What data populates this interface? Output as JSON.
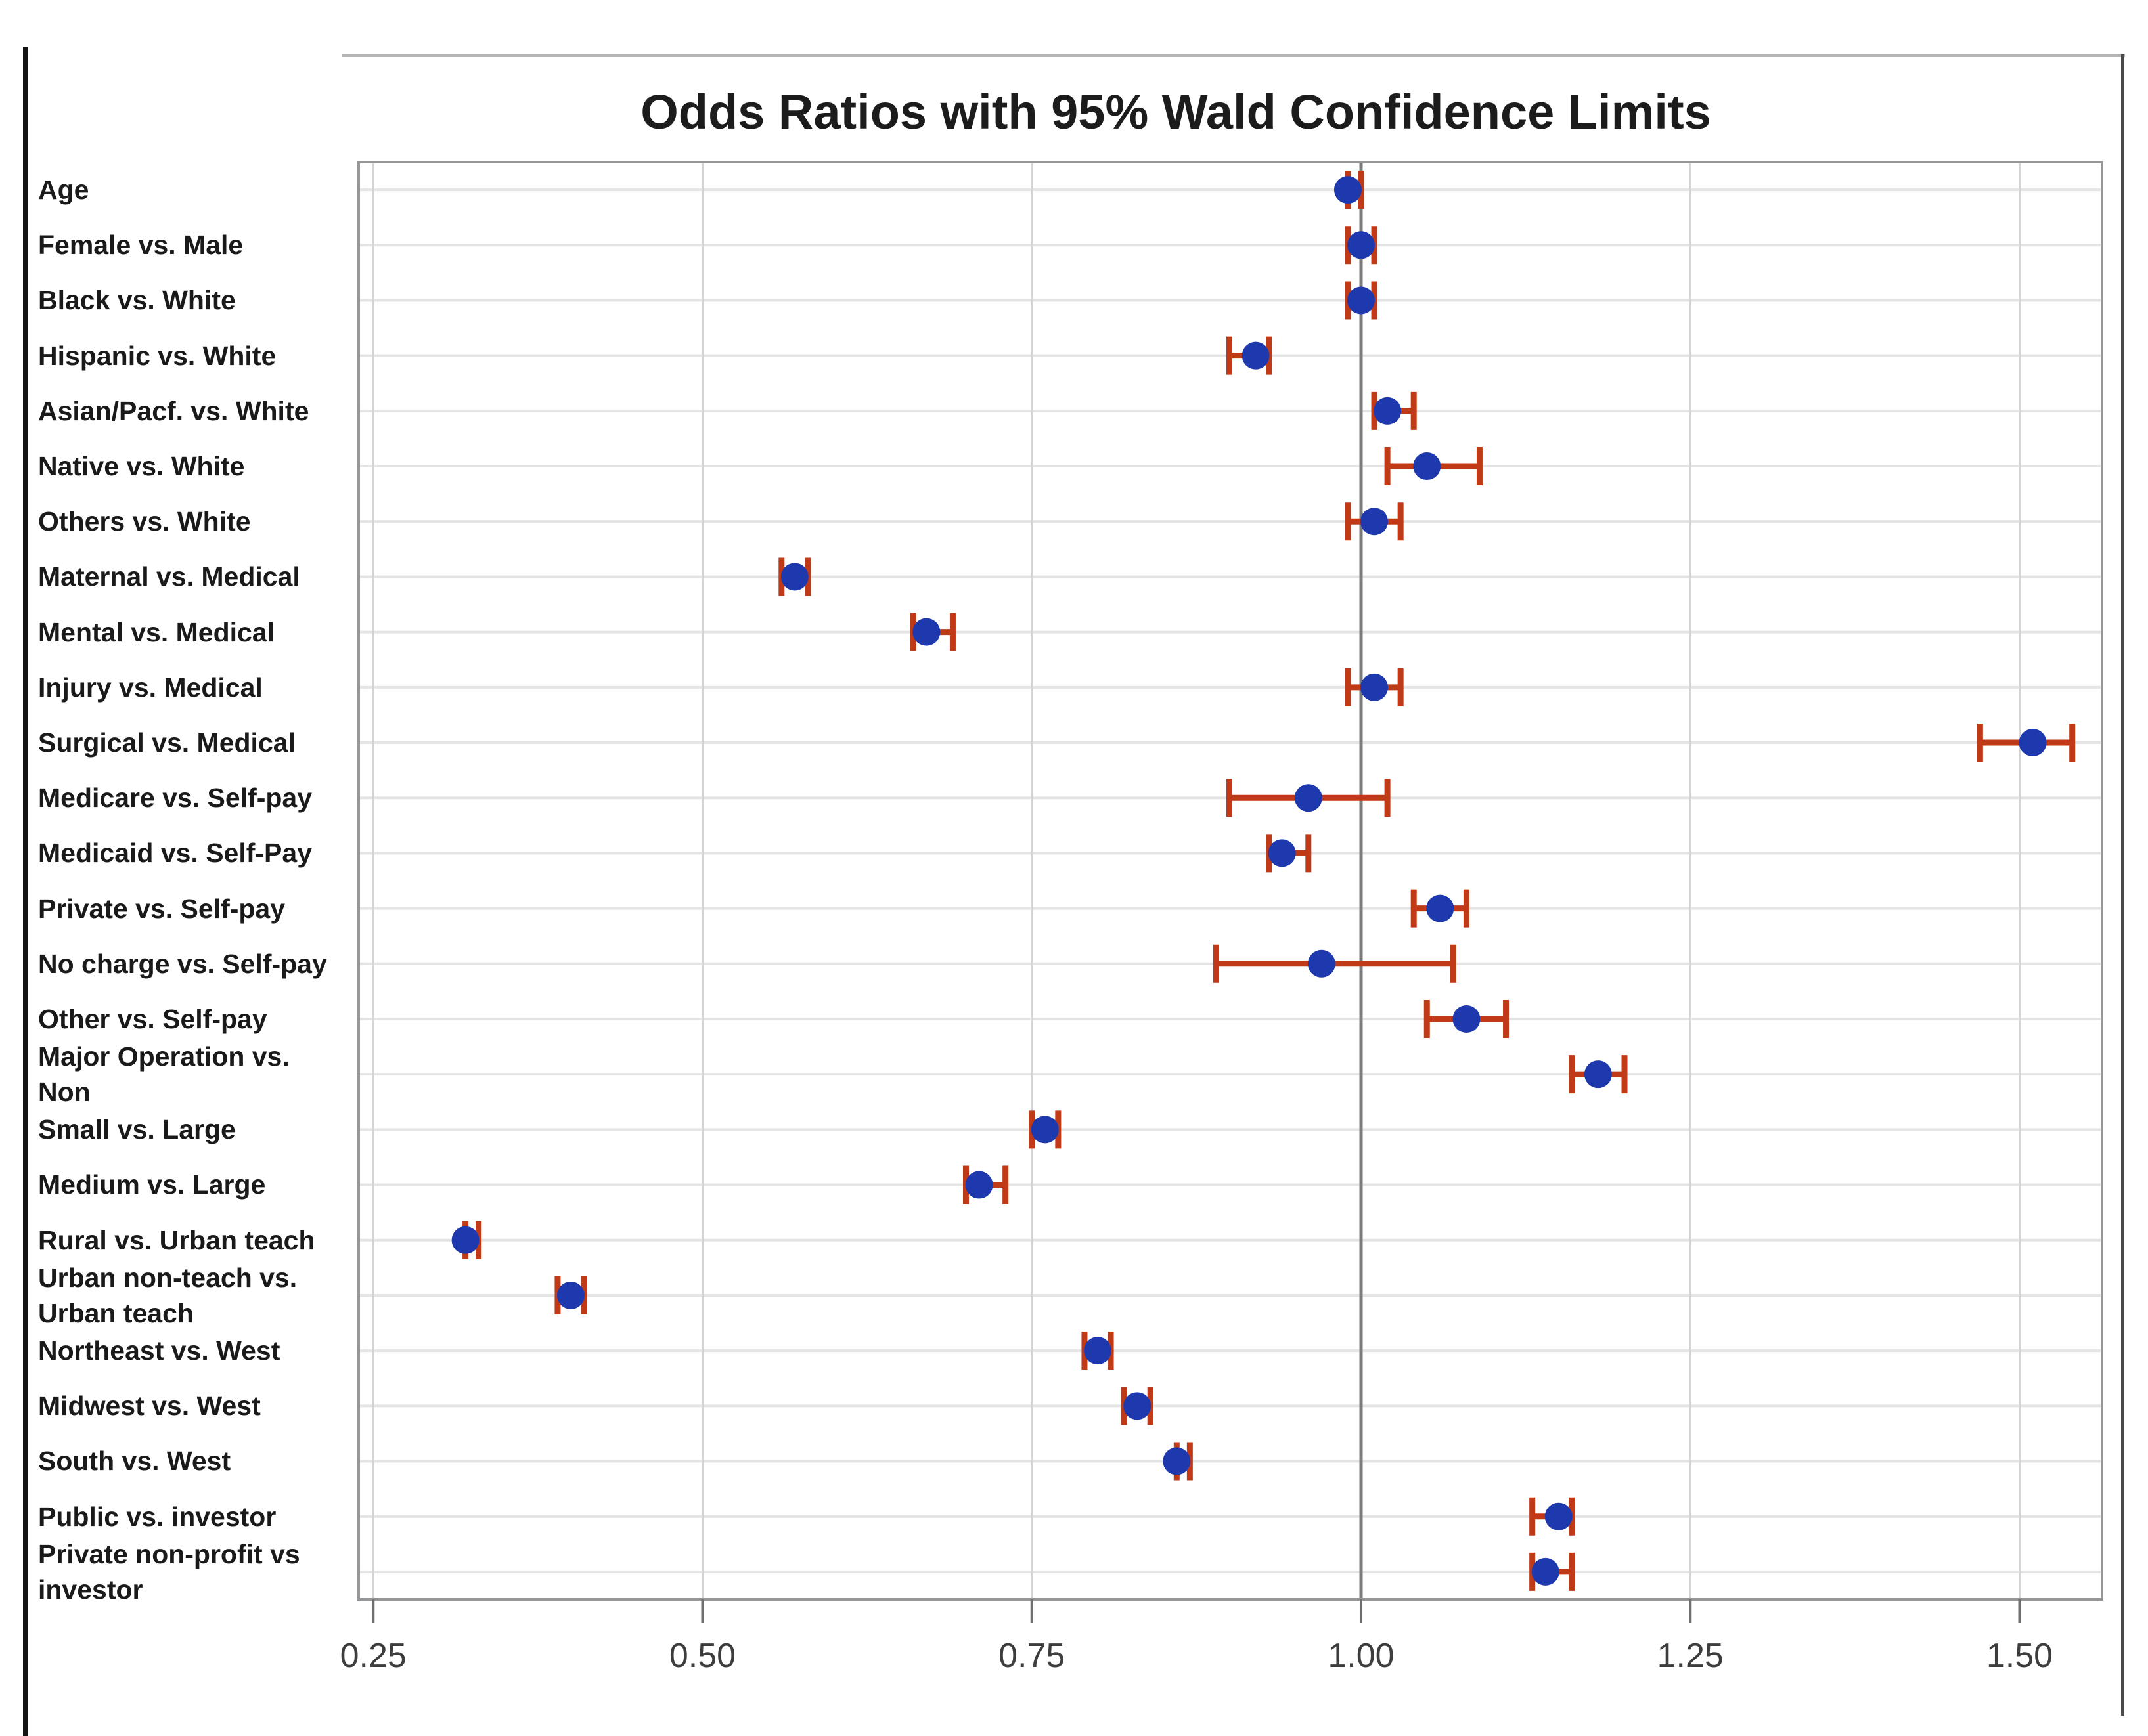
{
  "chart_data": {
    "type": "scatter",
    "subtype": "forest-plot",
    "title": "Odds Ratios with 95% Wald Confidence Limits",
    "xlabel": "",
    "ylabel": "",
    "xlim": [
      0.238,
      1.563
    ],
    "x_ticks": [
      0.25,
      0.5,
      0.75,
      1.0,
      1.25,
      1.5
    ],
    "x_tick_labels": [
      "0.25",
      "0.50",
      "0.75",
      "1.00",
      "1.25",
      "1.50"
    ],
    "reference_line": 1.0,
    "grid": "on",
    "legend_position": "none",
    "series_name": "Odds Ratio with 95% Wald Confidence Limits",
    "points": [
      {
        "label": "Age",
        "or": 0.99,
        "lo": 0.99,
        "hi": 1.0
      },
      {
        "label": "Female vs. Male",
        "or": 1.0,
        "lo": 0.99,
        "hi": 1.01
      },
      {
        "label": "Black vs. White",
        "or": 1.0,
        "lo": 0.99,
        "hi": 1.01
      },
      {
        "label": "Hispanic vs. White",
        "or": 0.92,
        "lo": 0.9,
        "hi": 0.93
      },
      {
        "label": "Asian/Pacf. vs. White",
        "or": 1.02,
        "lo": 1.01,
        "hi": 1.04
      },
      {
        "label": "Native vs. White",
        "or": 1.05,
        "lo": 1.02,
        "hi": 1.09
      },
      {
        "label": "Others vs. White",
        "or": 1.01,
        "lo": 0.99,
        "hi": 1.03
      },
      {
        "label": "Maternal vs. Medical",
        "or": 0.57,
        "lo": 0.56,
        "hi": 0.58
      },
      {
        "label": "Mental vs. Medical",
        "or": 0.67,
        "lo": 0.66,
        "hi": 0.69
      },
      {
        "label": "Injury vs. Medical",
        "or": 1.01,
        "lo": 0.99,
        "hi": 1.03
      },
      {
        "label": "Surgical vs. Medical",
        "or": 1.51,
        "lo": 1.47,
        "hi": 1.54
      },
      {
        "label": "Medicare vs. Self-pay",
        "or": 0.96,
        "lo": 0.9,
        "hi": 1.02
      },
      {
        "label": "Medicaid vs. Self-Pay",
        "or": 0.94,
        "lo": 0.93,
        "hi": 0.96
      },
      {
        "label": "Private vs. Self-pay",
        "or": 1.06,
        "lo": 1.04,
        "hi": 1.08
      },
      {
        "label": "No charge vs. Self-pay",
        "or": 0.97,
        "lo": 0.89,
        "hi": 1.07
      },
      {
        "label": "Other vs. Self-pay",
        "or": 1.08,
        "lo": 1.05,
        "hi": 1.11
      },
      {
        "label": "Major Operation vs.\nNon",
        "or": 1.18,
        "lo": 1.16,
        "hi": 1.2
      },
      {
        "label": "Small vs. Large",
        "or": 0.76,
        "lo": 0.75,
        "hi": 0.77
      },
      {
        "label": "Medium vs. Large",
        "or": 0.71,
        "lo": 0.7,
        "hi": 0.73
      },
      {
        "label": "Rural vs. Urban teach",
        "or": 0.32,
        "lo": 0.32,
        "hi": 0.33
      },
      {
        "label": "Urban non-teach vs.\nUrban teach",
        "or": 0.4,
        "lo": 0.39,
        "hi": 0.41
      },
      {
        "label": "Northeast vs. West",
        "or": 0.8,
        "lo": 0.79,
        "hi": 0.81
      },
      {
        "label": "Midwest vs. West",
        "or": 0.83,
        "lo": 0.82,
        "hi": 0.84
      },
      {
        "label": "South vs. West",
        "or": 0.86,
        "lo": 0.86,
        "hi": 0.87
      },
      {
        "label": "Public vs. investor",
        "or": 1.15,
        "lo": 1.13,
        "hi": 1.16
      },
      {
        "label": "Private non-profit vs\ninvestor",
        "or": 1.14,
        "lo": 1.13,
        "hi": 1.16
      }
    ],
    "colors": {
      "marker": "#1e38ae",
      "error_bar": "#c13a17",
      "reference_line": "#7a7a7a",
      "grid_vertical": "#d4d4d4",
      "grid_horizontal": "#e4e4e4",
      "plot_frame": "#949698",
      "text": "#1c1c1c",
      "tick_text": "#3d3d3d"
    }
  }
}
